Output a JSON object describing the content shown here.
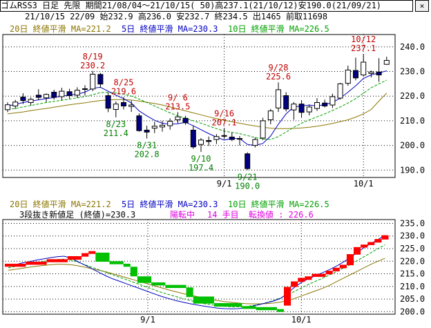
{
  "header": {
    "line1": "ゴムRSS3 日足 先限 期間21/08/04～21/10/15( 50)高237.1(21/10/12)安190.0(21/09/21)",
    "line2": "     21/10/15 22/09 始232.9 高236.0 安232.7 終234.5 出1465 前取11698",
    "close_icon": "close-icon"
  },
  "legend_top": {
    "ma20": "20日 終値平滑 MA=221.2",
    "ma5": "5日 終値平滑 MA=230.3",
    "ma10": "10日 終値平滑 MA=226.5"
  },
  "legend_bottom": {
    "ma20": "20日 終値平滑 MA=221.2",
    "ma5": "5日 終値平滑 MA=230.3",
    "ma10": "10日 終値平滑 MA=226.5",
    "kagi_title": "3段抜き新値足 (終値)=230.3",
    "kagi_state": "陽転中",
    "kagi_count": "14 手目",
    "kagi_turn": "転換値 : 226.6"
  },
  "colors": {
    "ma20": "#8b7500",
    "ma5": "#0000c0",
    "ma10": "#00a000",
    "up": "#ff0000",
    "down": "#00c000",
    "red_label": "#c00000",
    "green_label": "#008000",
    "magenta": "#e000e0"
  },
  "chart_data": [
    {
      "type": "candlestick",
      "x_ticks": [
        "9/1",
        "10/1"
      ],
      "y_ticks": [
        "240.0",
        "230.0",
        "220.0",
        "210.0",
        "200.0",
        "190.0"
      ],
      "ylim": [
        190,
        240
      ],
      "candles": [
        {
          "o": 214.5,
          "h": 217.5,
          "l": 213.5,
          "c": 216.5
        },
        {
          "o": 216.0,
          "h": 218.5,
          "l": 214.8,
          "c": 217.6
        },
        {
          "o": 219.6,
          "h": 221.2,
          "l": 216.8,
          "c": 218.2
        },
        {
          "o": 217.4,
          "h": 219.5,
          "l": 216.2,
          "c": 218.7
        },
        {
          "o": 220.4,
          "h": 222.8,
          "l": 218.4,
          "c": 219.5
        },
        {
          "o": 219.3,
          "h": 221.1,
          "l": 217.5,
          "c": 220.7
        },
        {
          "o": 221.6,
          "h": 222.6,
          "l": 218.6,
          "c": 219.6
        },
        {
          "o": 219.8,
          "h": 223.4,
          "l": 218.3,
          "c": 222.0
        },
        {
          "o": 221.8,
          "h": 223.0,
          "l": 219.0,
          "c": 220.2
        },
        {
          "o": 220.4,
          "h": 223.6,
          "l": 219.3,
          "c": 222.4
        },
        {
          "o": 222.8,
          "h": 224.4,
          "l": 220.2,
          "c": 223.0
        },
        {
          "o": 222.9,
          "h": 230.2,
          "l": 222.0,
          "c": 228.9
        },
        {
          "o": 228.8,
          "h": 229.4,
          "l": 223.4,
          "c": 224.9
        },
        {
          "o": 220.2,
          "h": 221.6,
          "l": 213.5,
          "c": 215.1
        },
        {
          "o": 214.6,
          "h": 217.8,
          "l": 211.4,
          "c": 216.8
        },
        {
          "o": 217.4,
          "h": 219.6,
          "l": 214.6,
          "c": 216.0
        },
        {
          "o": 215.8,
          "h": 218.2,
          "l": 213.6,
          "c": 216.4
        },
        {
          "o": 212.0,
          "h": 213.0,
          "l": 205.6,
          "c": 206.0
        },
        {
          "o": 206.2,
          "h": 208.0,
          "l": 202.8,
          "c": 205.4
        },
        {
          "o": 207.0,
          "h": 209.6,
          "l": 205.0,
          "c": 207.8
        },
        {
          "o": 207.5,
          "h": 210.0,
          "l": 205.6,
          "c": 208.2
        },
        {
          "o": 208.0,
          "h": 211.0,
          "l": 206.4,
          "c": 209.8
        },
        {
          "o": 210.4,
          "h": 213.5,
          "l": 209.0,
          "c": 211.6
        },
        {
          "o": 211.0,
          "h": 212.0,
          "l": 208.4,
          "c": 209.2
        },
        {
          "o": 206.2,
          "h": 208.0,
          "l": 198.6,
          "c": 199.4
        },
        {
          "o": 200.4,
          "h": 203.0,
          "l": 197.4,
          "c": 202.2
        },
        {
          "o": 202.0,
          "h": 203.6,
          "l": 199.8,
          "c": 201.6
        },
        {
          "o": 202.4,
          "h": 204.6,
          "l": 200.6,
          "c": 203.6
        },
        {
          "o": 203.8,
          "h": 207.1,
          "l": 202.6,
          "c": 204.0
        },
        {
          "o": 203.4,
          "h": 205.2,
          "l": 201.8,
          "c": 202.4
        },
        {
          "o": 202.6,
          "h": 203.8,
          "l": 200.0,
          "c": 202.8
        },
        {
          "o": 196.6,
          "h": 197.2,
          "l": 190.0,
          "c": 190.6
        },
        {
          "o": 200.0,
          "h": 203.2,
          "l": 199.2,
          "c": 202.4
        },
        {
          "o": 203.0,
          "h": 211.2,
          "l": 202.2,
          "c": 210.0
        },
        {
          "o": 210.4,
          "h": 214.8,
          "l": 208.6,
          "c": 214.0
        },
        {
          "o": 215.2,
          "h": 225.6,
          "l": 213.6,
          "c": 222.6
        },
        {
          "o": 220.2,
          "h": 221.6,
          "l": 213.8,
          "c": 214.8
        },
        {
          "o": 214.4,
          "h": 217.6,
          "l": 210.4,
          "c": 216.8
        },
        {
          "o": 216.8,
          "h": 218.4,
          "l": 211.2,
          "c": 213.4
        },
        {
          "o": 213.6,
          "h": 216.6,
          "l": 212.2,
          "c": 215.6
        },
        {
          "o": 215.0,
          "h": 219.2,
          "l": 214.0,
          "c": 217.4
        },
        {
          "o": 217.2,
          "h": 218.6,
          "l": 215.4,
          "c": 216.0
        },
        {
          "o": 216.4,
          "h": 221.0,
          "l": 215.2,
          "c": 219.8
        },
        {
          "o": 219.2,
          "h": 225.4,
          "l": 218.6,
          "c": 225.0
        },
        {
          "o": 225.2,
          "h": 232.4,
          "l": 224.2,
          "c": 230.6
        },
        {
          "o": 230.4,
          "h": 235.6,
          "l": 226.4,
          "c": 227.4
        },
        {
          "o": 228.6,
          "h": 237.1,
          "l": 228.2,
          "c": 233.8
        },
        {
          "o": 229.2,
          "h": 230.4,
          "l": 227.6,
          "c": 229.8
        },
        {
          "o": 229.8,
          "h": 235.4,
          "l": 225.8,
          "c": 228.6
        },
        {
          "o": 232.9,
          "h": 236.0,
          "l": 232.7,
          "c": 234.5
        }
      ],
      "ma5": [
        216.0,
        216.6,
        217.4,
        218.0,
        218.5,
        219.0,
        219.4,
        220.0,
        220.4,
        220.8,
        221.6,
        223.2,
        223.6,
        222.0,
        220.4,
        219.0,
        217.2,
        214.0,
        212.0,
        210.2,
        209.0,
        208.6,
        208.8,
        209.4,
        208.0,
        206.4,
        204.8,
        203.4,
        202.2,
        202.8,
        202.8,
        200.4,
        200.0,
        200.8,
        203.8,
        208.6,
        212.8,
        215.6,
        216.0,
        216.4,
        216.0,
        216.6,
        217.4,
        219.2,
        221.6,
        224.2,
        227.2,
        228.6,
        229.4,
        230.3
      ],
      "ma10": [
        214.6,
        215.0,
        215.6,
        216.2,
        216.8,
        217.4,
        217.9,
        218.3,
        218.8,
        219.3,
        219.8,
        220.6,
        221.4,
        221.5,
        221.3,
        220.8,
        220.0,
        218.8,
        217.4,
        216.0,
        214.6,
        213.2,
        212.0,
        211.0,
        210.0,
        209.0,
        207.9,
        206.8,
        205.8,
        205.3,
        204.8,
        204.0,
        203.2,
        202.6,
        202.4,
        203.6,
        205.4,
        207.4,
        209.0,
        210.4,
        211.6,
        212.8,
        214.2,
        215.6,
        217.2,
        219.0,
        221.2,
        223.4,
        225.0,
        226.5
      ],
      "ma20": [
        212.8,
        213.2,
        213.6,
        214.1,
        214.6,
        215.0,
        215.5,
        216.0,
        216.5,
        216.9,
        217.3,
        217.8,
        218.2,
        218.5,
        218.6,
        218.6,
        218.4,
        218.0,
        217.5,
        217.0,
        216.4,
        215.6,
        214.8,
        214.0,
        213.2,
        212.4,
        211.6,
        210.9,
        210.2,
        209.6,
        209.0,
        208.4,
        207.9,
        207.4,
        207.0,
        206.8,
        206.8,
        206.9,
        207.1,
        207.4,
        207.8,
        208.3,
        208.9,
        209.6,
        210.4,
        211.5,
        212.8,
        214.6,
        218.0,
        221.2
      ],
      "annotations": [
        {
          "i": 11,
          "date": "8/19",
          "value": "230.2",
          "pos": "above",
          "color": "red"
        },
        {
          "i": 15,
          "date": "8/25",
          "value": "219.6",
          "pos": "above",
          "color": "red"
        },
        {
          "i": 14,
          "date": "8/23",
          "value": "211.4",
          "pos": "below",
          "color": "green"
        },
        {
          "i": 22,
          "date": "9/ 6",
          "value": "213.5",
          "pos": "above",
          "color": "red"
        },
        {
          "i": 18,
          "date": "8/31",
          "value": "202.8",
          "pos": "below",
          "color": "green"
        },
        {
          "i": 28,
          "date": "9/16",
          "value": "207.1",
          "pos": "above",
          "color": "red"
        },
        {
          "i": 25,
          "date": "9/10",
          "value": "197.4",
          "pos": "below",
          "color": "green"
        },
        {
          "i": 31,
          "date": "9/21",
          "value": "190.0",
          "pos": "below",
          "color": "green"
        },
        {
          "i": 35,
          "date": "9/28",
          "value": "225.6",
          "pos": "above",
          "color": "red"
        },
        {
          "i": 46,
          "date": "10/12",
          "value": "237.1",
          "pos": "above",
          "color": "red"
        }
      ]
    },
    {
      "type": "new_price_bars",
      "y_ticks": [
        "235.0",
        "230.0",
        "225.0",
        "220.0",
        "215.0",
        "210.0",
        "205.0",
        "200.0"
      ],
      "ylim": [
        200,
        236
      ],
      "x_ticks": [
        "9/1",
        "10/1"
      ],
      "bars": [
        {
          "s": 0,
          "e": 3,
          "lo": 217.8,
          "hi": 219.0,
          "dir": "up"
        },
        {
          "s": 3,
          "e": 6,
          "lo": 218.6,
          "hi": 219.8,
          "dir": "up"
        },
        {
          "s": 6,
          "e": 9,
          "lo": 219.6,
          "hi": 220.8,
          "dir": "up"
        },
        {
          "s": 9,
          "e": 11,
          "lo": 220.6,
          "hi": 222.0,
          "dir": "up"
        },
        {
          "s": 11,
          "e": 12,
          "lo": 221.8,
          "hi": 223.2,
          "dir": "up"
        },
        {
          "s": 12,
          "e": 13,
          "lo": 223.0,
          "hi": 224.0,
          "dir": "up"
        },
        {
          "s": 13,
          "e": 15,
          "lo": 219.8,
          "hi": 223.4,
          "dir": "down"
        },
        {
          "s": 15,
          "e": 17,
          "lo": 218.8,
          "hi": 220.0,
          "dir": "down"
        },
        {
          "s": 17,
          "e": 18,
          "lo": 217.8,
          "hi": 219.0,
          "dir": "down"
        },
        {
          "s": 18,
          "e": 19,
          "lo": 214.0,
          "hi": 217.8,
          "dir": "down"
        },
        {
          "s": 19,
          "e": 21,
          "lo": 211.4,
          "hi": 214.0,
          "dir": "down"
        },
        {
          "s": 21,
          "e": 23,
          "lo": 210.4,
          "hi": 211.6,
          "dir": "down"
        },
        {
          "s": 23,
          "e": 26,
          "lo": 209.4,
          "hi": 210.6,
          "dir": "down"
        },
        {
          "s": 26,
          "e": 27,
          "lo": 205.8,
          "hi": 209.6,
          "dir": "down"
        },
        {
          "s": 27,
          "e": 30,
          "lo": 203.2,
          "hi": 206.0,
          "dir": "down"
        },
        {
          "s": 30,
          "e": 34,
          "lo": 202.0,
          "hi": 203.4,
          "dir": "down"
        },
        {
          "s": 34,
          "e": 36,
          "lo": 201.6,
          "hi": 202.2,
          "dir": "down"
        },
        {
          "s": 36,
          "e": 39,
          "lo": 200.6,
          "hi": 201.8,
          "dir": "down"
        },
        {
          "s": 39,
          "e": 40,
          "lo": 200.0,
          "hi": 201.0,
          "dir": "down"
        },
        {
          "s": 40,
          "e": 41,
          "lo": 202.4,
          "hi": 209.8,
          "dir": "up"
        },
        {
          "s": 41,
          "e": 42,
          "lo": 209.8,
          "hi": 212.0,
          "dir": "up"
        },
        {
          "s": 42,
          "e": 43,
          "lo": 211.8,
          "hi": 213.4,
          "dir": "up"
        },
        {
          "s": 43,
          "e": 44,
          "lo": 212.6,
          "hi": 214.0,
          "dir": "up"
        },
        {
          "s": 44,
          "e": 46,
          "lo": 213.8,
          "hi": 215.0,
          "dir": "up"
        },
        {
          "s": 46,
          "e": 47,
          "lo": 214.8,
          "hi": 216.2,
          "dir": "up"
        },
        {
          "s": 47,
          "e": 48,
          "lo": 216.0,
          "hi": 217.4,
          "dir": "up"
        },
        {
          "s": 48,
          "e": 49,
          "lo": 217.2,
          "hi": 218.6,
          "dir": "up"
        },
        {
          "s": 49,
          "e": 50,
          "lo": 218.4,
          "hi": 222.8,
          "dir": "up"
        },
        {
          "s": 50,
          "e": 51,
          "lo": 222.6,
          "hi": 225.6,
          "dir": "up"
        },
        {
          "s": 51,
          "e": 52,
          "lo": 225.4,
          "hi": 226.6,
          "dir": "up"
        },
        {
          "s": 52,
          "e": 53,
          "lo": 226.4,
          "hi": 227.6,
          "dir": "up"
        },
        {
          "s": 53,
          "e": 54,
          "lo": 227.4,
          "hi": 228.8,
          "dir": "up"
        },
        {
          "s": 54,
          "e": 55,
          "lo": 228.6,
          "hi": 230.3,
          "dir": "up"
        }
      ],
      "ma5": [
        218.0,
        218.6,
        219.3,
        219.8,
        220.4,
        220.9,
        221.4,
        221.8,
        222.0,
        221.2,
        219.8,
        218.4,
        217.0,
        215.6,
        214.2,
        213.0,
        212.0,
        211.0,
        210.0,
        209.0,
        208.0,
        207.0,
        206.0,
        205.2,
        204.4,
        203.8,
        203.2,
        202.7,
        202.2,
        201.8,
        201.4,
        201.2,
        201.1,
        201.2,
        201.6,
        202.2,
        202.8,
        203.5,
        204.2,
        205.2,
        207.2,
        209.6,
        211.6,
        213.0,
        214.2,
        215.4,
        216.6,
        218.0,
        219.6,
        221.4,
        223.4,
        225.4,
        227.0,
        228.6,
        230.3
      ],
      "ma10": [
        217.4,
        217.9,
        218.4,
        218.9,
        219.4,
        219.9,
        220.3,
        220.7,
        220.8,
        220.4,
        219.6,
        218.6,
        217.6,
        216.6,
        215.6,
        214.6,
        213.6,
        212.6,
        211.6,
        210.6,
        209.6,
        208.6,
        207.6,
        206.8,
        206.0,
        205.2,
        204.5,
        203.8,
        203.2,
        202.8,
        202.4,
        202.1,
        201.9,
        201.9,
        202.0,
        202.4,
        202.9,
        203.6,
        204.4,
        205.4,
        206.6,
        208.0,
        209.4,
        210.8,
        212.0,
        213.2,
        214.5,
        215.8,
        217.2,
        218.6,
        220.2,
        221.8,
        223.4,
        225.0,
        226.5
      ],
      "ma20": [
        216.4,
        216.8,
        217.2,
        217.6,
        218.0,
        218.3,
        218.6,
        218.8,
        218.8,
        218.6,
        218.2,
        217.6,
        217.0,
        216.4,
        215.8,
        215.0,
        214.2,
        213.4,
        212.6,
        211.8,
        211.0,
        210.2,
        209.4,
        208.6,
        207.9,
        207.2,
        206.6,
        206.0,
        205.4,
        204.9,
        204.4,
        204.0,
        203.7,
        203.4,
        203.2,
        203.1,
        203.1,
        203.2,
        203.4,
        203.8,
        204.4,
        205.2,
        206.2,
        207.2,
        208.2,
        209.2,
        210.4,
        211.8,
        213.2,
        214.6,
        216.0,
        217.4,
        218.8,
        220.0,
        221.2
      ]
    }
  ]
}
